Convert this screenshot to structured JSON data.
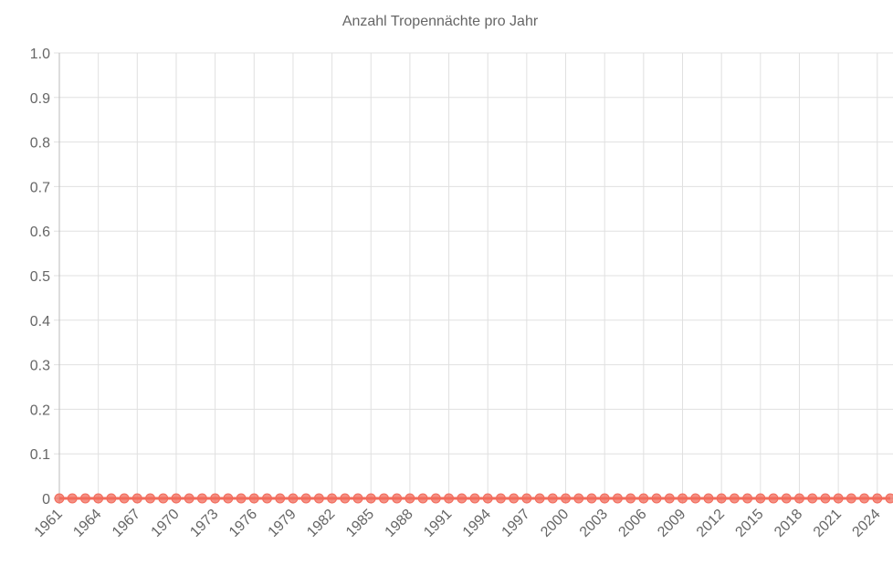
{
  "chart_data": {
    "type": "line",
    "title": "Anzahl Tropennächte pro Jahr",
    "categories": [
      "1961",
      null,
      null,
      "1964",
      null,
      null,
      "1967",
      null,
      null,
      "1970",
      null,
      null,
      "1973",
      null,
      null,
      "1976",
      null,
      null,
      "1979",
      null,
      null,
      "1982",
      null,
      null,
      "1985",
      null,
      null,
      "1988",
      null,
      null,
      "1991",
      null,
      null,
      "1994",
      null,
      null,
      "1997",
      null,
      null,
      "2000",
      null,
      null,
      "2003",
      null,
      null,
      "2006",
      null,
      null,
      "2009",
      null,
      null,
      "2012",
      null,
      null,
      "2015",
      null,
      null,
      "2018",
      null,
      null,
      "2021",
      null,
      null,
      "2024",
      null
    ],
    "series": [
      {
        "color": "#f26b5b",
        "values": [
          0,
          0,
          0,
          0,
          0,
          0,
          0,
          0,
          0,
          0,
          0,
          0,
          0,
          0,
          0,
          0,
          0,
          0,
          0,
          0,
          0,
          0,
          0,
          0,
          0,
          0,
          0,
          0,
          0,
          0,
          0,
          0,
          0,
          0,
          0,
          0,
          0,
          0,
          0,
          0,
          0,
          0,
          0,
          0,
          0,
          0,
          0,
          0,
          0,
          0,
          0,
          0,
          0,
          0,
          0,
          0,
          0,
          0,
          0,
          0,
          0,
          0,
          0,
          0,
          0
        ]
      }
    ],
    "ylim": [
      0,
      1
    ],
    "yticks": [
      0,
      0.1,
      0.2,
      0.3,
      0.4,
      0.5,
      0.6,
      0.7,
      0.8,
      0.9,
      {
        "value": 1,
        "label": "1.0"
      }
    ],
    "grid": true
  }
}
